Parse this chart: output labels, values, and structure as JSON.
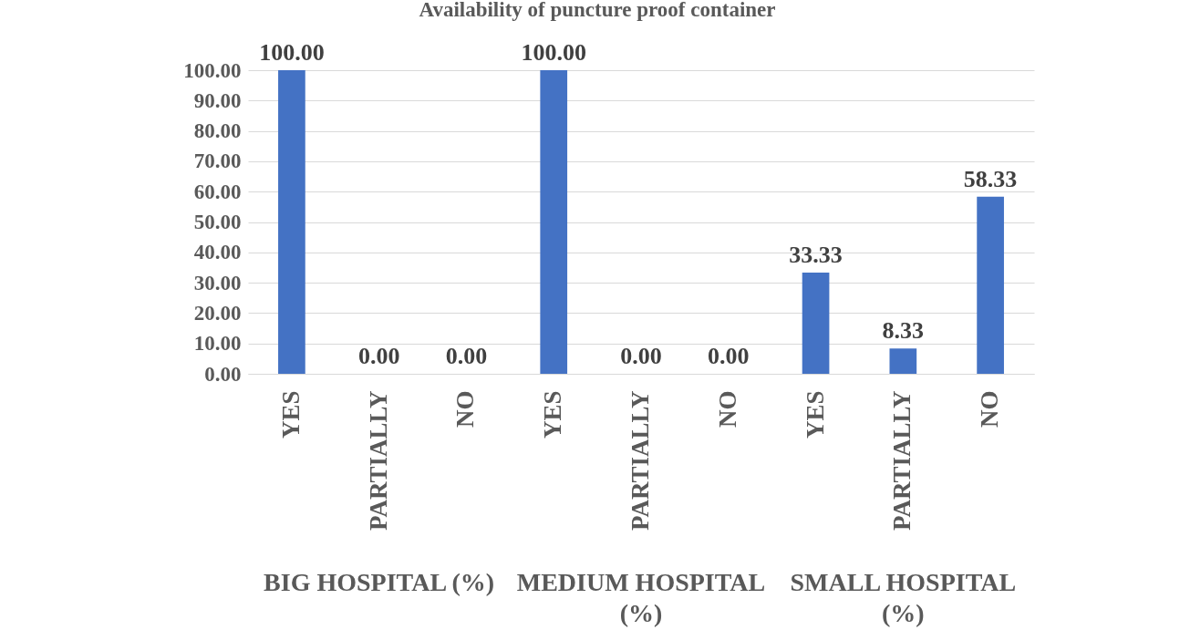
{
  "chart_data": {
    "type": "bar",
    "title": "Availability of puncture proof container",
    "categories": [
      "YES",
      "PARTIALLY",
      "NO",
      "YES",
      "PARTIALLY",
      "NO",
      "YES",
      "PARTIALLY",
      "NO"
    ],
    "values": [
      100,
      0,
      0,
      100,
      0,
      0,
      33.33,
      8.33,
      58.33
    ],
    "color": "#4472c4",
    "ylim": [
      0,
      100
    ],
    "yticks": [
      {
        "value": 0,
        "label": "0.00"
      },
      {
        "value": 10,
        "label": "10.00"
      },
      {
        "value": 20,
        "label": "20.00"
      },
      {
        "value": 30,
        "label": "30.00"
      },
      {
        "value": 40,
        "label": "40.00"
      },
      {
        "value": 50,
        "label": "50.00"
      },
      {
        "value": 60,
        "label": "60.00"
      },
      {
        "value": 70,
        "label": "70.00"
      },
      {
        "value": 80,
        "label": "80.00"
      },
      {
        "value": 90,
        "label": "90.00"
      },
      {
        "value": 100,
        "label": "100.00"
      }
    ],
    "grid": "y",
    "value_labels": [
      "100.00",
      "0.00",
      "0.00",
      "100.00",
      "0.00",
      "0.00",
      "33.33",
      "8.33",
      "58.33"
    ],
    "annotations": [
      "BIG HOSPITAL (%)",
      "MEDIUM HOSPITAL (%)",
      "SMALL HOSPITAL (%)"
    ]
  }
}
